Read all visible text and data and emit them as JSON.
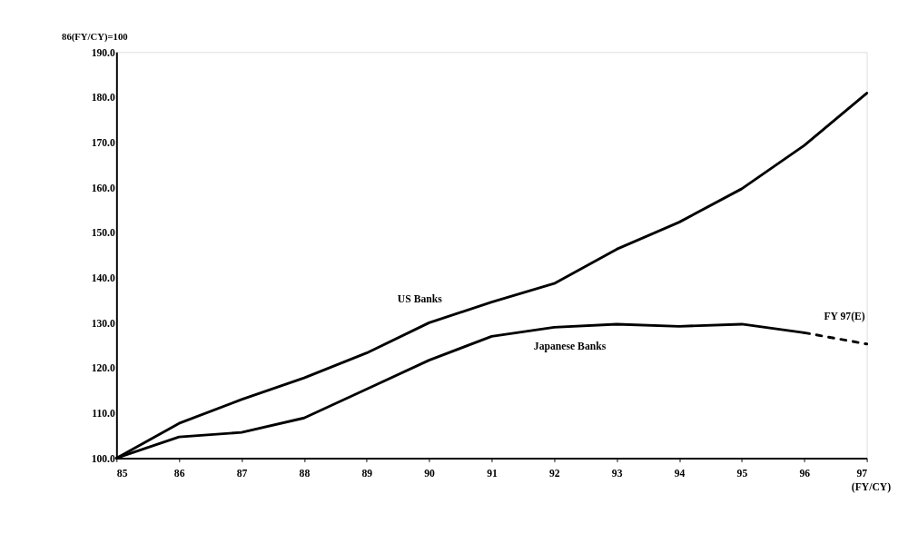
{
  "chart_data": {
    "type": "line",
    "ylabel": "86(FY/CY)=100",
    "xlabel": "(FY/CY)",
    "x": [
      85,
      86,
      87,
      88,
      89,
      90,
      91,
      92,
      93,
      94,
      95,
      96
    ],
    "series": [
      {
        "name": "US Banks",
        "color": "#000000",
        "x": [
          85,
          86,
          87,
          88,
          89,
          90,
          91,
          92,
          93,
          94,
          95,
          96,
          97
        ],
        "values": [
          100.0,
          107.7,
          113.0,
          117.8,
          123.3,
          130.0,
          134.6,
          138.7,
          146.3,
          152.3,
          159.7,
          169.3,
          180.9
        ]
      },
      {
        "name": "Japanese Banks",
        "color": "#000000",
        "values": [
          100.0,
          104.7,
          105.7,
          108.9,
          115.3,
          121.7,
          127.0,
          129.0,
          129.7,
          129.2,
          129.7,
          127.8
        ]
      },
      {
        "color": "#000000",
        "line_style": "dashed",
        "x": [
          96,
          97
        ],
        "values": [
          127.8,
          125.3
        ]
      }
    ],
    "annotations": [
      {
        "text": "FY 97(E)",
        "x": 97,
        "y": 125.3
      }
    ],
    "xlim": [
      85,
      97
    ],
    "xticks": [
      85,
      86,
      87,
      88,
      89,
      90,
      91,
      92,
      93,
      94,
      95,
      96,
      97
    ],
    "ylim": [
      100,
      190
    ],
    "yticks": [
      {
        "value": 100,
        "label": "100.0"
      },
      {
        "value": 110,
        "label": "110.0"
      },
      {
        "value": 120,
        "label": "120.0"
      },
      {
        "value": 130,
        "label": "130.0"
      },
      {
        "value": 140,
        "label": "140.0"
      },
      {
        "value": 150,
        "label": "150.0"
      },
      {
        "value": 160,
        "label": "160.0"
      },
      {
        "value": 170,
        "label": "170.0"
      },
      {
        "value": 180,
        "label": "180.0"
      },
      {
        "value": 190,
        "label": "190.0"
      }
    ],
    "grid": false,
    "marker": "none",
    "line_style": "solid"
  }
}
